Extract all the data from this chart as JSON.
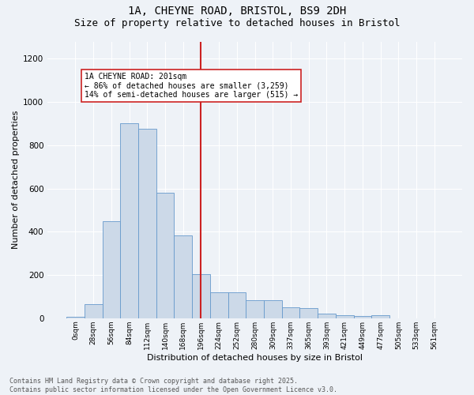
{
  "title_line1": "1A, CHEYNE ROAD, BRISTOL, BS9 2DH",
  "title_line2": "Size of property relative to detached houses in Bristol",
  "xlabel": "Distribution of detached houses by size in Bristol",
  "ylabel": "Number of detached properties",
  "bar_color": "#ccd9e8",
  "bar_edge_color": "#6699cc",
  "vline_color": "#cc2222",
  "vline_x_idx": 7,
  "annotation_text": "1A CHEYNE ROAD: 201sqm\n← 86% of detached houses are smaller (3,259)\n14% of semi-detached houses are larger (515) →",
  "footer_text": "Contains HM Land Registry data © Crown copyright and database right 2025.\nContains public sector information licensed under the Open Government Licence v3.0.",
  "categories": [
    "0sqm",
    "28sqm",
    "56sqm",
    "84sqm",
    "112sqm",
    "140sqm",
    "168sqm",
    "196sqm",
    "224sqm",
    "252sqm",
    "280sqm",
    "309sqm",
    "337sqm",
    "365sqm",
    "393sqm",
    "421sqm",
    "449sqm",
    "477sqm",
    "505sqm",
    "533sqm",
    "561sqm"
  ],
  "values": [
    8,
    65,
    447,
    900,
    875,
    580,
    382,
    205,
    120,
    120,
    85,
    85,
    50,
    48,
    22,
    13,
    10,
    13,
    0,
    0,
    0
  ],
  "ylim": [
    0,
    1280
  ],
  "background_color": "#eef2f7",
  "grid_color": "#ffffff",
  "title_fontsize": 10,
  "subtitle_fontsize": 9,
  "tick_fontsize": 6.5,
  "ylabel_fontsize": 8,
  "xlabel_fontsize": 8,
  "annotation_fontsize": 7,
  "footer_fontsize": 6
}
